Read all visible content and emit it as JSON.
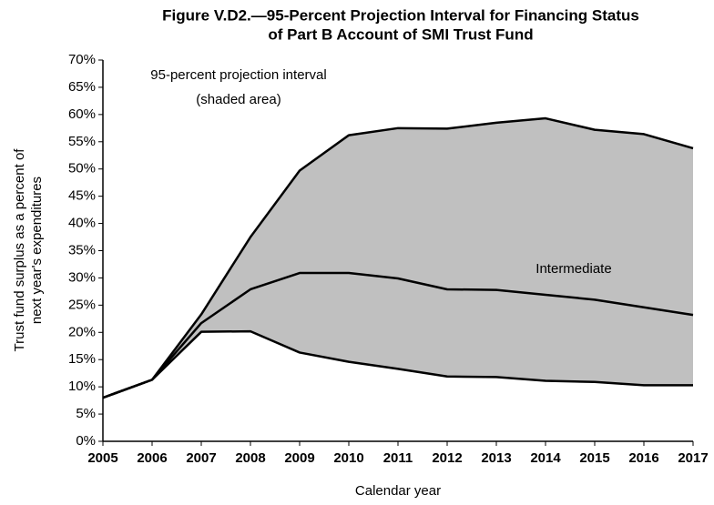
{
  "chart_data": {
    "type": "line",
    "title": [
      "Figure V.D2.—95-Percent Projection Interval for Financing Status",
      "of Part B Account of SMI Trust Fund"
    ],
    "ylabel": [
      "Trust fund surplus as a percent of",
      "next year's expenditures"
    ],
    "xlabel": "Calendar year",
    "annotations": [
      "95-percent projection interval",
      "(shaded area)"
    ],
    "x": [
      2005,
      2006,
      2007,
      2008,
      2009,
      2010,
      2011,
      2012,
      2013,
      2014,
      2015,
      2016,
      2017
    ],
    "series": [
      {
        "color": "#000000",
        "values": [
          8,
          11.3,
          23.3,
          37.5,
          49.7,
          56.2,
          57.5,
          57.4,
          58.5,
          59.3,
          57.2,
          56.4,
          53.8
        ]
      },
      {
        "name": "Intermediate",
        "color": "#000000",
        "values": [
          8,
          11.3,
          21.7,
          27.9,
          30.9,
          30.9,
          29.9,
          27.9,
          27.8,
          26.9,
          26.0,
          24.6,
          23.2
        ]
      },
      {
        "color": "#000000",
        "values": [
          8,
          11.3,
          20.1,
          20.2,
          16.3,
          14.6,
          13.3,
          11.9,
          11.8,
          11.1,
          10.9,
          10.3,
          10.3
        ]
      }
    ],
    "interval_fill": "#c0c0c0",
    "xlim": [
      2005,
      2017
    ],
    "xticks": [
      2005,
      2006,
      2007,
      2008,
      2009,
      2010,
      2011,
      2012,
      2013,
      2014,
      2015,
      2016,
      2017
    ],
    "ylim": [
      0,
      70
    ],
    "yticks": [
      {
        "value": 0,
        "label": "0%"
      },
      {
        "value": 5,
        "label": "5%"
      },
      {
        "value": 10,
        "label": "10%"
      },
      {
        "value": 15,
        "label": "15%"
      },
      {
        "value": 20,
        "label": "20%"
      },
      {
        "value": 25,
        "label": "25%"
      },
      {
        "value": 30,
        "label": "30%"
      },
      {
        "value": 35,
        "label": "35%"
      },
      {
        "value": 40,
        "label": "40%"
      },
      {
        "value": 45,
        "label": "45%"
      },
      {
        "value": 50,
        "label": "50%"
      },
      {
        "value": 55,
        "label": "55%"
      },
      {
        "value": 60,
        "label": "60%"
      },
      {
        "value": 65,
        "label": "65%"
      },
      {
        "value": 70,
        "label": "70%"
      }
    ],
    "grid": false
  }
}
